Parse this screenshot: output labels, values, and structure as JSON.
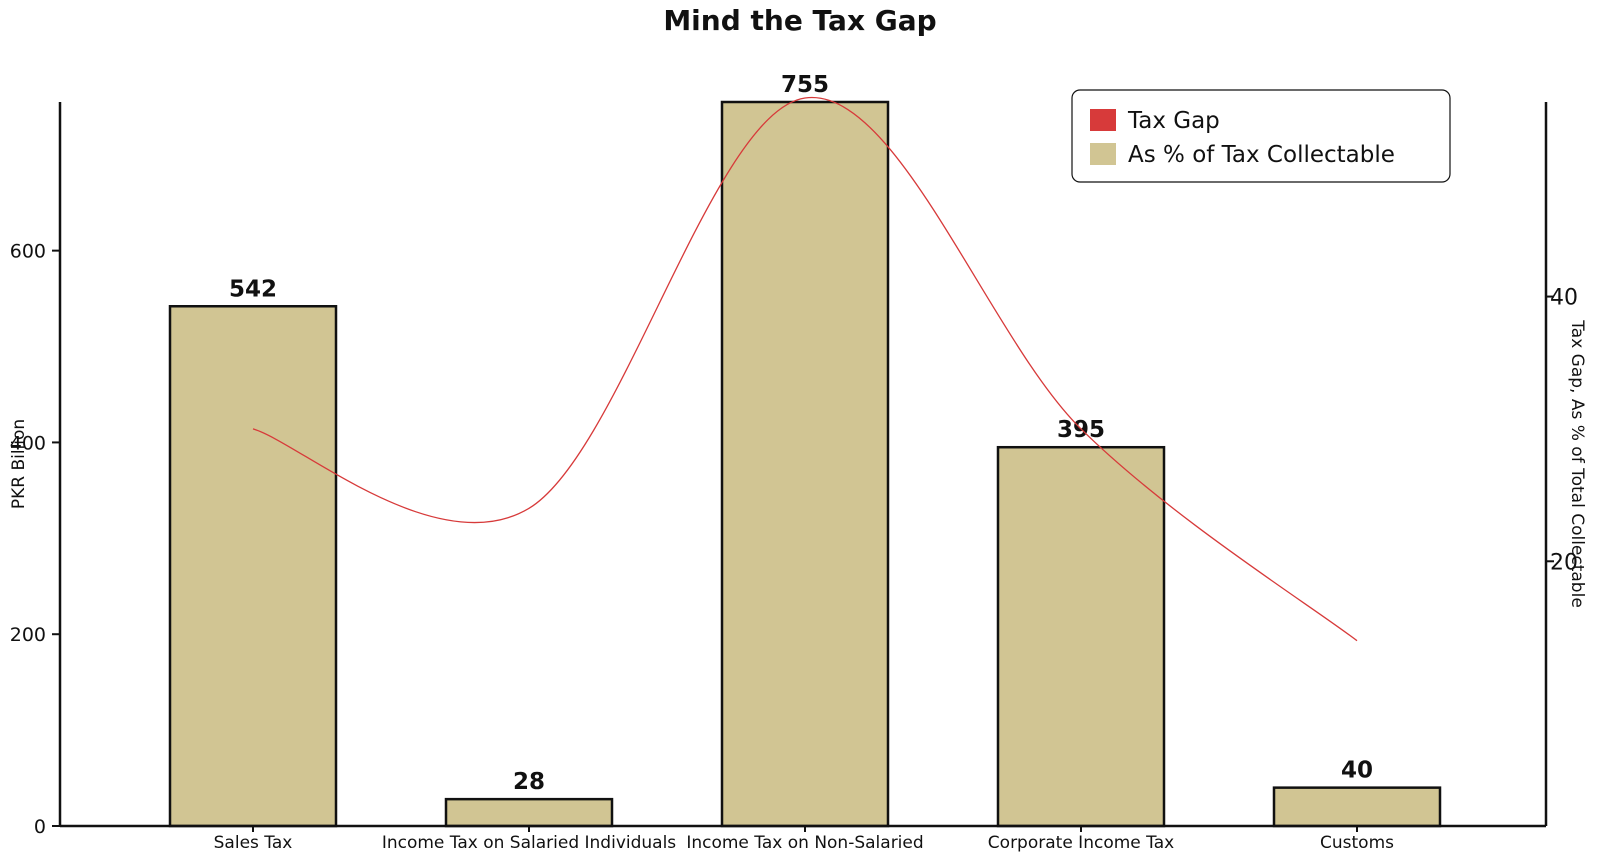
{
  "chart_data": {
    "type": "bar",
    "title": "Mind the Tax Gap",
    "categories": [
      "Sales Tax",
      "Income Tax on Salaried Individuals",
      "Income Tax on Non-Salaried",
      "Corporate Income Tax",
      "Customs"
    ],
    "series": [
      {
        "name": "Tax Gap",
        "type": "line",
        "axis": "right",
        "color": "#d73a3a",
        "values": [
          30,
          24,
          55,
          30,
          14
        ]
      },
      {
        "name": "As % of Tax Collectable",
        "type": "bar",
        "axis": "left",
        "color": "#d1c593",
        "values": [
          542,
          28,
          755,
          395,
          40
        ]
      }
    ],
    "data_labels": [
      "542",
      "28",
      "755",
      "395",
      "40"
    ],
    "ylabel": "PKR Billion",
    "ylabel_right": "Tax Gap, As % of Total Collectable",
    "ylim": [
      0,
      755
    ],
    "yticks": [
      0,
      200,
      400,
      600
    ],
    "ylim_right": [
      0,
      54.7
    ],
    "yticks_right": [
      20,
      40
    ],
    "legend_position": "top-right",
    "grid": false
  }
}
